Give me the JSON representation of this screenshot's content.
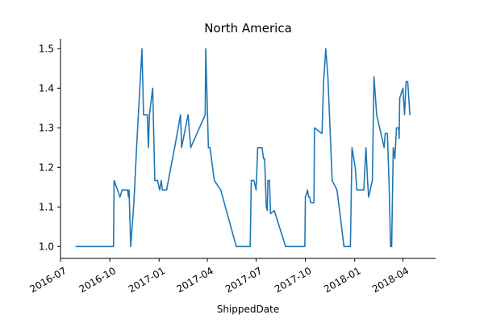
{
  "chart_data": {
    "type": "line",
    "title": "North America",
    "xlabel": "ShippedDate",
    "ylabel": "",
    "x_type": "date",
    "xlim": [
      "2016-07-01",
      "2018-06-01"
    ],
    "ylim": [
      0.97,
      1.525
    ],
    "grid": false,
    "legend": "none",
    "x_ticks": [
      {
        "value": "2016-07-01",
        "label": "2016-07"
      },
      {
        "value": "2016-10-01",
        "label": "2016-10"
      },
      {
        "value": "2017-01-01",
        "label": "2017-01"
      },
      {
        "value": "2017-04-01",
        "label": "2017-04"
      },
      {
        "value": "2017-07-01",
        "label": "2017-07"
      },
      {
        "value": "2017-10-01",
        "label": "2017-10"
      },
      {
        "value": "2018-01-01",
        "label": "2018-01"
      },
      {
        "value": "2018-04-01",
        "label": "2018-04"
      }
    ],
    "y_ticks": [
      {
        "value": 1.0,
        "label": "1.0"
      },
      {
        "value": 1.1,
        "label": "1.1"
      },
      {
        "value": 1.2,
        "label": "1.2"
      },
      {
        "value": 1.3,
        "label": "1.3"
      },
      {
        "value": 1.4,
        "label": "1.4"
      },
      {
        "value": 1.5,
        "label": "1.5"
      }
    ],
    "series": [
      {
        "color": "#1f77b4",
        "points": [
          [
            "2016-07-30",
            1.0
          ],
          [
            "2016-10-08",
            1.0
          ],
          [
            "2016-10-09",
            1.167
          ],
          [
            "2016-10-20",
            1.125
          ],
          [
            "2016-10-24",
            1.143
          ],
          [
            "2016-11-03",
            1.143
          ],
          [
            "2016-11-05",
            1.125
          ],
          [
            "2016-11-06",
            1.143
          ],
          [
            "2016-11-09",
            1.0
          ],
          [
            "2016-11-15",
            1.111
          ],
          [
            "2016-11-20",
            1.25
          ],
          [
            "2016-11-25",
            1.375
          ],
          [
            "2016-11-30",
            1.5
          ],
          [
            "2016-12-03",
            1.333
          ],
          [
            "2016-12-10",
            1.333
          ],
          [
            "2016-12-12",
            1.25
          ],
          [
            "2016-12-14",
            1.333
          ],
          [
            "2016-12-20",
            1.4
          ],
          [
            "2016-12-24",
            1.167
          ],
          [
            "2016-12-29",
            1.167
          ],
          [
            "2017-01-02",
            1.143
          ],
          [
            "2017-01-05",
            1.167
          ],
          [
            "2017-01-07",
            1.143
          ],
          [
            "2017-01-15",
            1.143
          ],
          [
            "2017-01-30",
            1.25
          ],
          [
            "2017-02-10",
            1.333
          ],
          [
            "2017-02-12",
            1.25
          ],
          [
            "2017-02-24",
            1.333
          ],
          [
            "2017-03-01",
            1.25
          ],
          [
            "2017-03-28",
            1.333
          ],
          [
            "2017-03-29",
            1.5
          ],
          [
            "2017-04-03",
            1.25
          ],
          [
            "2017-04-06",
            1.25
          ],
          [
            "2017-04-14",
            1.167
          ],
          [
            "2017-04-26",
            1.143
          ],
          [
            "2017-05-25",
            1.0
          ],
          [
            "2017-06-20",
            1.0
          ],
          [
            "2017-06-22",
            1.167
          ],
          [
            "2017-06-27",
            1.167
          ],
          [
            "2017-07-01",
            1.143
          ],
          [
            "2017-07-04",
            1.25
          ],
          [
            "2017-07-12",
            1.25
          ],
          [
            "2017-07-15",
            1.222
          ],
          [
            "2017-07-17",
            1.222
          ],
          [
            "2017-07-20",
            1.1
          ],
          [
            "2017-07-22",
            1.091
          ],
          [
            "2017-07-23",
            1.167
          ],
          [
            "2017-07-26",
            1.167
          ],
          [
            "2017-07-28",
            1.083
          ],
          [
            "2017-08-04",
            1.091
          ],
          [
            "2017-08-25",
            1.0
          ],
          [
            "2017-09-30",
            1.0
          ],
          [
            "2017-10-01",
            1.125
          ],
          [
            "2017-10-05",
            1.143
          ],
          [
            "2017-10-07",
            1.125
          ],
          [
            "2017-10-09",
            1.125
          ],
          [
            "2017-10-11",
            1.111
          ],
          [
            "2017-10-17",
            1.111
          ],
          [
            "2017-10-18",
            1.3
          ],
          [
            "2017-10-31",
            1.286
          ],
          [
            "2017-11-01",
            1.286
          ],
          [
            "2017-11-04",
            1.417
          ],
          [
            "2017-11-08",
            1.5
          ],
          [
            "2017-11-12",
            1.429
          ],
          [
            "2017-11-20",
            1.167
          ],
          [
            "2017-11-29",
            1.143
          ],
          [
            "2017-12-12",
            1.0
          ],
          [
            "2017-12-24",
            1.0
          ],
          [
            "2017-12-27",
            1.25
          ],
          [
            "2018-01-02",
            1.2
          ],
          [
            "2018-01-05",
            1.143
          ],
          [
            "2018-01-18",
            1.143
          ],
          [
            "2018-01-22",
            1.25
          ],
          [
            "2018-01-25",
            1.167
          ],
          [
            "2018-01-27",
            1.125
          ],
          [
            "2018-02-03",
            1.167
          ],
          [
            "2018-02-06",
            1.429
          ],
          [
            "2018-02-11",
            1.333
          ],
          [
            "2018-02-25",
            1.25
          ],
          [
            "2018-02-27",
            1.286
          ],
          [
            "2018-03-03",
            1.286
          ],
          [
            "2018-03-06",
            1.167
          ],
          [
            "2018-03-09",
            1.0
          ],
          [
            "2018-03-11",
            1.0
          ],
          [
            "2018-03-14",
            1.25
          ],
          [
            "2018-03-17",
            1.222
          ],
          [
            "2018-03-20",
            1.3
          ],
          [
            "2018-03-24",
            1.3
          ],
          [
            "2018-03-25",
            1.273
          ],
          [
            "2018-03-26",
            1.375
          ],
          [
            "2018-04-01",
            1.4
          ],
          [
            "2018-04-04",
            1.333
          ],
          [
            "2018-04-07",
            1.417
          ],
          [
            "2018-04-10",
            1.417
          ],
          [
            "2018-04-14",
            1.333
          ]
        ]
      }
    ]
  }
}
